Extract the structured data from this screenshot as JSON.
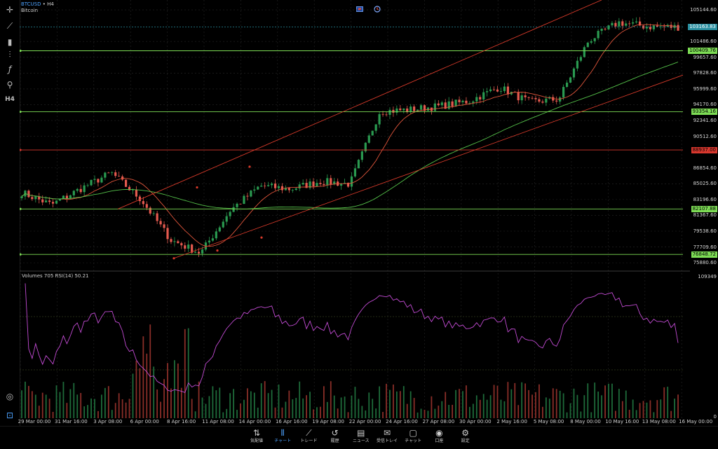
{
  "header": {
    "symbol": "BTCUSD",
    "separator": " • ",
    "timeframe": "H4",
    "name": "Bitcoin"
  },
  "toolbar": {
    "items": [
      "crosshair-icon",
      "line-tool-icon",
      "candles-icon",
      "settings-sliders-icon",
      "function-icon",
      "objects-icon"
    ],
    "h4_label": "H4"
  },
  "indicator": {
    "label": "Volumes 705 RSI(14) 50.21"
  },
  "price_axis": {
    "labels": [
      "105144.60",
      "101486.60",
      "99657.60",
      "97828.60",
      "95999.60",
      "94170.60",
      "92341.60",
      "90512.60",
      "86854.60",
      "85025.60",
      "83196.60",
      "81367.60",
      "79538.60",
      "77709.60",
      "75880.60"
    ],
    "indicator_labels": [
      "109349",
      "0"
    ]
  },
  "price_tags": [
    {
      "value": "103163.83",
      "color": "#2a8fa0",
      "text_color": "#ffffff"
    },
    {
      "value": "100409.76",
      "color": "#7ddc55",
      "text_color": "#000000"
    },
    {
      "value": "93354.16",
      "color": "#7ddc55",
      "text_color": "#000000"
    },
    {
      "value": "88937.00",
      "color": "#d9382e",
      "text_color": "#000000"
    },
    {
      "value": "82107.88",
      "color": "#7ddc55",
      "text_color": "#000000"
    },
    {
      "value": "76848.72",
      "color": "#7ddc55",
      "text_color": "#000000"
    }
  ],
  "time_axis": [
    "29 Mar 00:00",
    "31 Mar 16:00",
    "3 Apr 08:00",
    "6 Apr 00:00",
    "8 Apr 16:00",
    "11 Apr 08:00",
    "14 Apr 00:00",
    "16 Apr 16:00",
    "19 Apr 08:00",
    "22 Apr 00:00",
    "24 Apr 16:00",
    "27 Apr 08:00",
    "30 Apr 00:00",
    "2 May 16:00",
    "5 May 08:00",
    "8 May 00:00",
    "10 May 16:00",
    "13 May 08:00",
    "16 May 00:00"
  ],
  "nav": {
    "items": [
      {
        "label": "気配値",
        "icon": "quotes-icon"
      },
      {
        "label": "チャート",
        "icon": "chart-icon"
      },
      {
        "label": "トレード",
        "icon": "trade-icon"
      },
      {
        "label": "履歴",
        "icon": "history-icon"
      },
      {
        "label": "ニュース",
        "icon": "news-icon"
      },
      {
        "label": "受信トレイ",
        "icon": "inbox-icon"
      },
      {
        "label": "チャット",
        "icon": "chat-icon"
      },
      {
        "label": "口座",
        "icon": "account-icon"
      },
      {
        "label": "設定",
        "icon": "settings-icon"
      }
    ],
    "active": "チャート"
  },
  "colors": {
    "up": "#2a9a50",
    "down": "#e55a4f",
    "rsi": "#c24bd3",
    "ma_fast": "#e0553b",
    "ma_slow": "#55c24a",
    "channel": "#d83a2a",
    "hline_green": "#7ddc55",
    "hline_red": "#d9382e"
  },
  "chart_data": {
    "type": "candlestick",
    "symbol": "BTCUSD",
    "timeframe": "H4",
    "ylim": [
      75000,
      105800
    ],
    "x": [
      "29 Mar 00:00",
      "31 Mar 16:00",
      "3 Apr 08:00",
      "6 Apr 00:00",
      "8 Apr 16:00",
      "11 Apr 08:00",
      "14 Apr 00:00",
      "16 Apr 16:00",
      "19 Apr 08:00",
      "22 Apr 00:00",
      "24 Apr 16:00",
      "27 Apr 08:00",
      "30 Apr 00:00",
      "2 May 16:00",
      "5 May 08:00",
      "8 May 00:00",
      "10 May 16:00",
      "13 May 08:00"
    ],
    "close_path": [
      84000,
      82600,
      84500,
      86300,
      83200,
      78500,
      77000,
      82000,
      84800,
      84400,
      85300,
      85000,
      93400,
      93600,
      94000,
      94600,
      96200,
      94500,
      94800,
      101600,
      103700,
      103200,
      103163.83
    ],
    "key_levels": [
      100409.76,
      93354.16,
      88937.0,
      82107.88,
      76848.72
    ],
    "rsi_last": 50.21
  }
}
